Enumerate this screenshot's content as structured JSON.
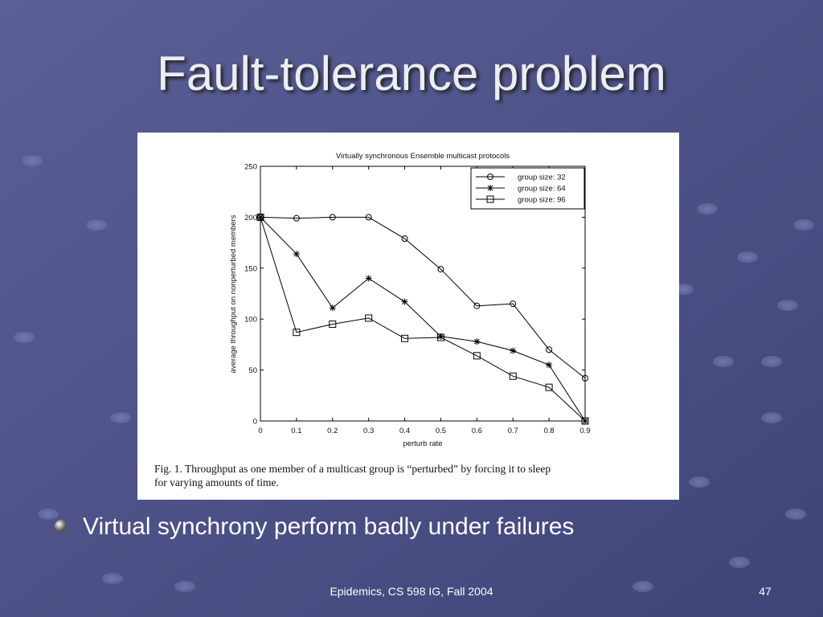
{
  "slide": {
    "title": "Fault-tolerance problem",
    "caption": [
      "Fig. 1.   Throughput as one member of a multicast group is “perturbed” by forcing it to sleep",
      "for varying amounts of time."
    ],
    "bullet": "Virtual synchrony perform badly under failures",
    "footer": "Epidemics, CS 598 IG, Fall 2004",
    "page": "47"
  },
  "chart_data": {
    "type": "line",
    "title": "Virtually synchronous Ensemble multicast protocols",
    "x_label": "perturb rate",
    "y_label": "average throughput on nonperturbed members",
    "x": [
      0,
      0.1,
      0.2,
      0.3,
      0.4,
      0.5,
      0.6,
      0.7,
      0.8,
      0.9
    ],
    "series": [
      {
        "name": "group size: 32",
        "color": "#000000",
        "marker": "circle",
        "values": [
          200,
          199,
          200,
          200,
          179,
          149,
          113,
          115,
          70,
          42
        ]
      },
      {
        "name": "group size: 64",
        "color": "#000000",
        "marker": "star",
        "values": [
          200,
          164,
          111,
          140,
          117,
          83,
          78,
          69,
          55,
          0
        ]
      },
      {
        "name": "group size: 96",
        "color": "#000000",
        "marker": "square",
        "values": [
          200,
          87,
          95,
          101,
          81,
          82,
          64,
          44,
          33,
          0
        ]
      }
    ],
    "xlim": [
      0,
      0.9
    ],
    "xticks": [
      0,
      0.1,
      0.2,
      0.3,
      0.4,
      0.5,
      0.6,
      0.7,
      0.8,
      0.9
    ],
    "ylim": [
      0,
      250
    ],
    "yticks": [
      0,
      50,
      100,
      150,
      200,
      250
    ],
    "legend": "top-right",
    "grid": false
  }
}
